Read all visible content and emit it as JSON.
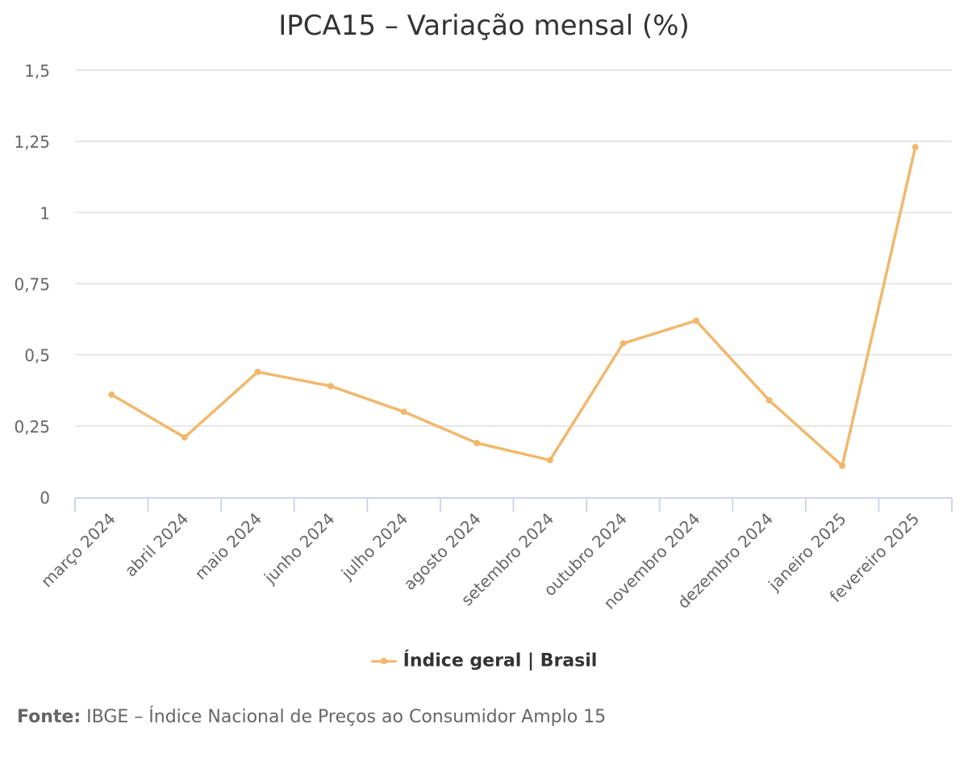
{
  "chart_data": {
    "type": "line",
    "title": "IPCA15 – Variação mensal (%)",
    "categories": [
      "março 2024",
      "abril 2024",
      "maio 2024",
      "junho 2024",
      "julho 2024",
      "agosto 2024",
      "setembro 2024",
      "outubro 2024",
      "novembro 2024",
      "dezembro 2024",
      "janeiro 2025",
      "fevereiro 2025"
    ],
    "series": [
      {
        "name": "Índice geral | Brasil",
        "values": [
          0.36,
          0.21,
          0.44,
          0.39,
          0.3,
          0.19,
          0.13,
          0.54,
          0.62,
          0.34,
          0.11,
          1.23
        ],
        "color": "#f0b86d"
      }
    ],
    "yticks": [
      "0",
      "0,25",
      "0,5",
      "0,75",
      "1",
      "1,25",
      "1,5"
    ],
    "ytick_values": [
      0,
      0.25,
      0.5,
      0.75,
      1,
      1.25,
      1.5
    ],
    "ylim": [
      0,
      1.5
    ],
    "grid": true,
    "legend_position": "bottom-center",
    "source_label": "Fonte:",
    "source_text": "IBGE – Índice Nacional de Preços ao Consumidor Amplo 15",
    "colors": {
      "line": "#f0b86d",
      "grid": "#e6e6e6",
      "axis": "#ccd6eb",
      "text": "#333333",
      "muted": "#666666"
    }
  }
}
